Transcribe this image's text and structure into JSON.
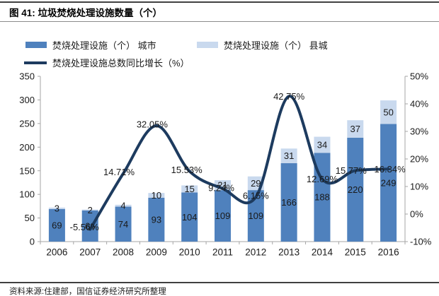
{
  "header": {
    "title": "图 41: 垃圾焚烧处理设施数量（个）"
  },
  "legend": {
    "items": [
      {
        "label": "焚烧处理设施（个） 城市",
        "marker": "bar",
        "color": "#4f81bd"
      },
      {
        "label": "焚烧处理设施（个） 县城",
        "marker": "bar",
        "color": "#c9d9ee"
      },
      {
        "label": "焚烧处理设施总数同比增长（%）",
        "marker": "line",
        "color": "#1d3b5f"
      }
    ]
  },
  "chart_data": {
    "type": "bar",
    "subtype": "stacked-bar-with-line",
    "title": "垃圾焚烧处理设施数量（个）",
    "categories": [
      "2006",
      "2007",
      "2008",
      "2009",
      "2010",
      "2011",
      "2012",
      "2013",
      "2014",
      "2015",
      "2016"
    ],
    "series": [
      {
        "name": "焚烧处理设施（个） 城市",
        "type": "bar",
        "axis": "left",
        "color": "#4f81bd",
        "values": [
          69,
          66,
          74,
          93,
          104,
          109,
          109,
          166,
          188,
          220,
          249
        ]
      },
      {
        "name": "焚烧处理设施（个） 县城",
        "type": "bar",
        "axis": "left",
        "color": "#c9d9ee",
        "values": [
          3,
          2,
          4,
          10,
          15,
          21,
          29,
          31,
          34,
          37,
          50
        ]
      },
      {
        "name": "焚烧处理设施总数同比增长（%）",
        "type": "line",
        "axis": "right",
        "color": "#1d3b5f",
        "values": [
          null,
          -5.56,
          14.71,
          32.05,
          15.53,
          9.24,
          6.15,
          42.75,
          12.69,
          15.77,
          16.34
        ],
        "labels": [
          "",
          "-5.56%",
          "14.71%",
          "32.05%",
          "15.53%",
          "9.24%",
          "6.15%",
          "42.75%",
          "12.69%",
          "15.77%",
          "16.34%"
        ]
      }
    ],
    "stacked": true,
    "grid": false,
    "legend_position": "top",
    "left_axis": {
      "min": 0,
      "max": 350,
      "step": 50,
      "ticks": [
        "0",
        "50",
        "100",
        "150",
        "200",
        "250",
        "300",
        "350"
      ]
    },
    "right_axis": {
      "min": -10,
      "max": 50,
      "step": 10,
      "suffix": "%",
      "ticks": [
        "-10%",
        "0%",
        "10%",
        "20%",
        "30%",
        "40%",
        "50%"
      ]
    },
    "colors": {
      "axis_line": "#a6a6a6",
      "label_text": "#1a1a1a"
    }
  },
  "footer": {
    "source": "资料来源:住建部，国信证券经济研究所整理"
  }
}
